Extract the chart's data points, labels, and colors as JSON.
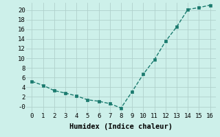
{
  "x": [
    0,
    1,
    2,
    3,
    4,
    5,
    6,
    7,
    8,
    9,
    10,
    11,
    12,
    13,
    14,
    15,
    16
  ],
  "y": [
    5.2,
    4.4,
    3.3,
    2.8,
    2.2,
    1.4,
    1.1,
    0.6,
    -0.3,
    3.1,
    6.7,
    9.7,
    13.5,
    16.5,
    20.1,
    20.5,
    21.0
  ],
  "line_color": "#1a7a6e",
  "marker": "s",
  "marker_size": 2.5,
  "bg_color": "#cdf0ea",
  "grid_color": "#b0d0cc",
  "xlabel": "Humidex (Indice chaleur)",
  "xlim": [
    -0.5,
    16.5
  ],
  "ylim": [
    -1.2,
    21.5
  ],
  "xticks": [
    0,
    1,
    2,
    3,
    4,
    5,
    6,
    7,
    8,
    9,
    10,
    11,
    12,
    13,
    14,
    15,
    16
  ],
  "yticks": [
    0,
    2,
    4,
    6,
    8,
    10,
    12,
    14,
    16,
    18,
    20
  ],
  "ytick_labels": [
    "-0",
    "2",
    "4",
    "6",
    "8",
    "10",
    "12",
    "14",
    "16",
    "18",
    "20"
  ],
  "xlabel_fontsize": 7.5,
  "tick_fontsize": 6.5,
  "line_width": 1.0
}
